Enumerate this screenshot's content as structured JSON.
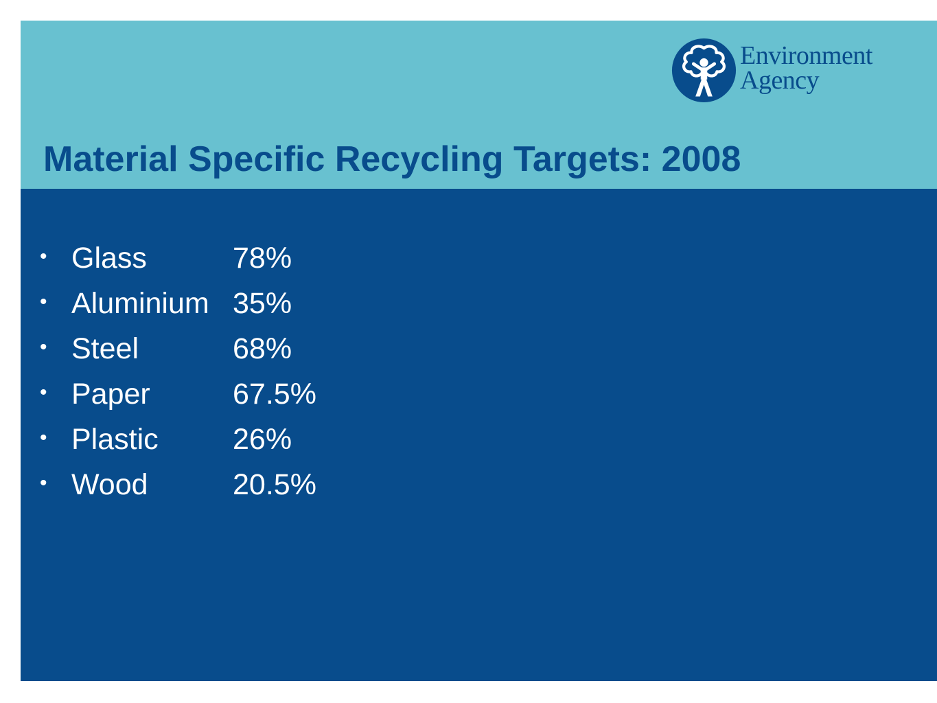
{
  "logo": {
    "line1": "Environment",
    "line2": "Agency",
    "emblem_icon": "tree-person-emblem-icon"
  },
  "title": "Material Specific Recycling Targets: 2008",
  "bullet": "•",
  "targets": [
    {
      "material": "Glass",
      "value": "78%"
    },
    {
      "material": "Aluminium",
      "value": "35%"
    },
    {
      "material": "Steel",
      "value": "68%"
    },
    {
      "material": "Paper",
      "value": "67.5%"
    },
    {
      "material": "Plastic",
      "value": "26%"
    },
    {
      "material": "Wood",
      "value": "20.5%"
    }
  ],
  "colors": {
    "header_bg": "#68c1d0",
    "body_bg": "#084c8c",
    "title_text": "#084c8c",
    "body_text": "#ffffff"
  }
}
